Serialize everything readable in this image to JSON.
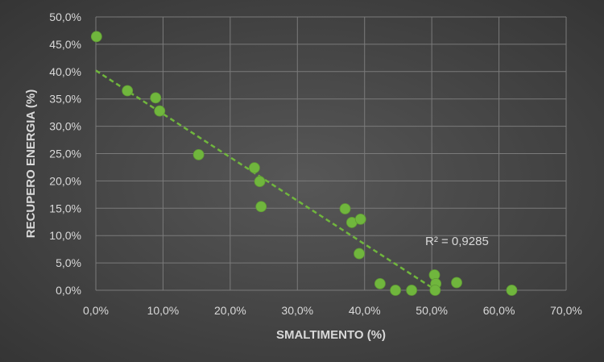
{
  "chart_data": {
    "type": "scatter",
    "title": "",
    "xlabel": "SMALTIMENTO (%)",
    "ylabel": "RECUPERO ENERGIA (%)",
    "xlim": [
      0,
      0.7
    ],
    "ylim": [
      0,
      0.5
    ],
    "x_ticks": [
      0,
      0.1,
      0.2,
      0.3,
      0.4,
      0.5,
      0.6,
      0.7
    ],
    "y_ticks": [
      0,
      0.05,
      0.1,
      0.15,
      0.2,
      0.25,
      0.3,
      0.35,
      0.4,
      0.45,
      0.5
    ],
    "x_tick_labels": [
      "0,0%",
      "10,0%",
      "20,0%",
      "30,0%",
      "40,0%",
      "50,0%",
      "60,0%",
      "70,0%"
    ],
    "y_tick_labels": [
      "0,0%",
      "5,0%",
      "10,0%",
      "15,0%",
      "20,0%",
      "25,0%",
      "30,0%",
      "35,0%",
      "40,0%",
      "45,0%",
      "50,0%"
    ],
    "grid": true,
    "legend": "none",
    "series": [
      {
        "marker_color": "#70b63d",
        "points": [
          [
            0.001,
            0.464
          ],
          [
            0.047,
            0.365
          ],
          [
            0.089,
            0.352
          ],
          [
            0.095,
            0.328
          ],
          [
            0.153,
            0.248
          ],
          [
            0.236,
            0.224
          ],
          [
            0.244,
            0.199
          ],
          [
            0.246,
            0.153
          ],
          [
            0.371,
            0.149
          ],
          [
            0.381,
            0.124
          ],
          [
            0.394,
            0.13
          ],
          [
            0.392,
            0.067
          ],
          [
            0.423,
            0.012
          ],
          [
            0.446,
            0.0
          ],
          [
            0.47,
            0.0
          ],
          [
            0.504,
            0.028
          ],
          [
            0.506,
            0.012
          ],
          [
            0.505,
            0.0
          ],
          [
            0.537,
            0.014
          ],
          [
            0.619,
            0.0
          ]
        ]
      }
    ],
    "trendline": {
      "type": "linear",
      "color": "#70b63d",
      "style": "dashed",
      "x": [
        0,
        0.5
      ],
      "y": [
        0.402,
        0.005
      ],
      "r2_label": "R² = 0,9285"
    }
  }
}
